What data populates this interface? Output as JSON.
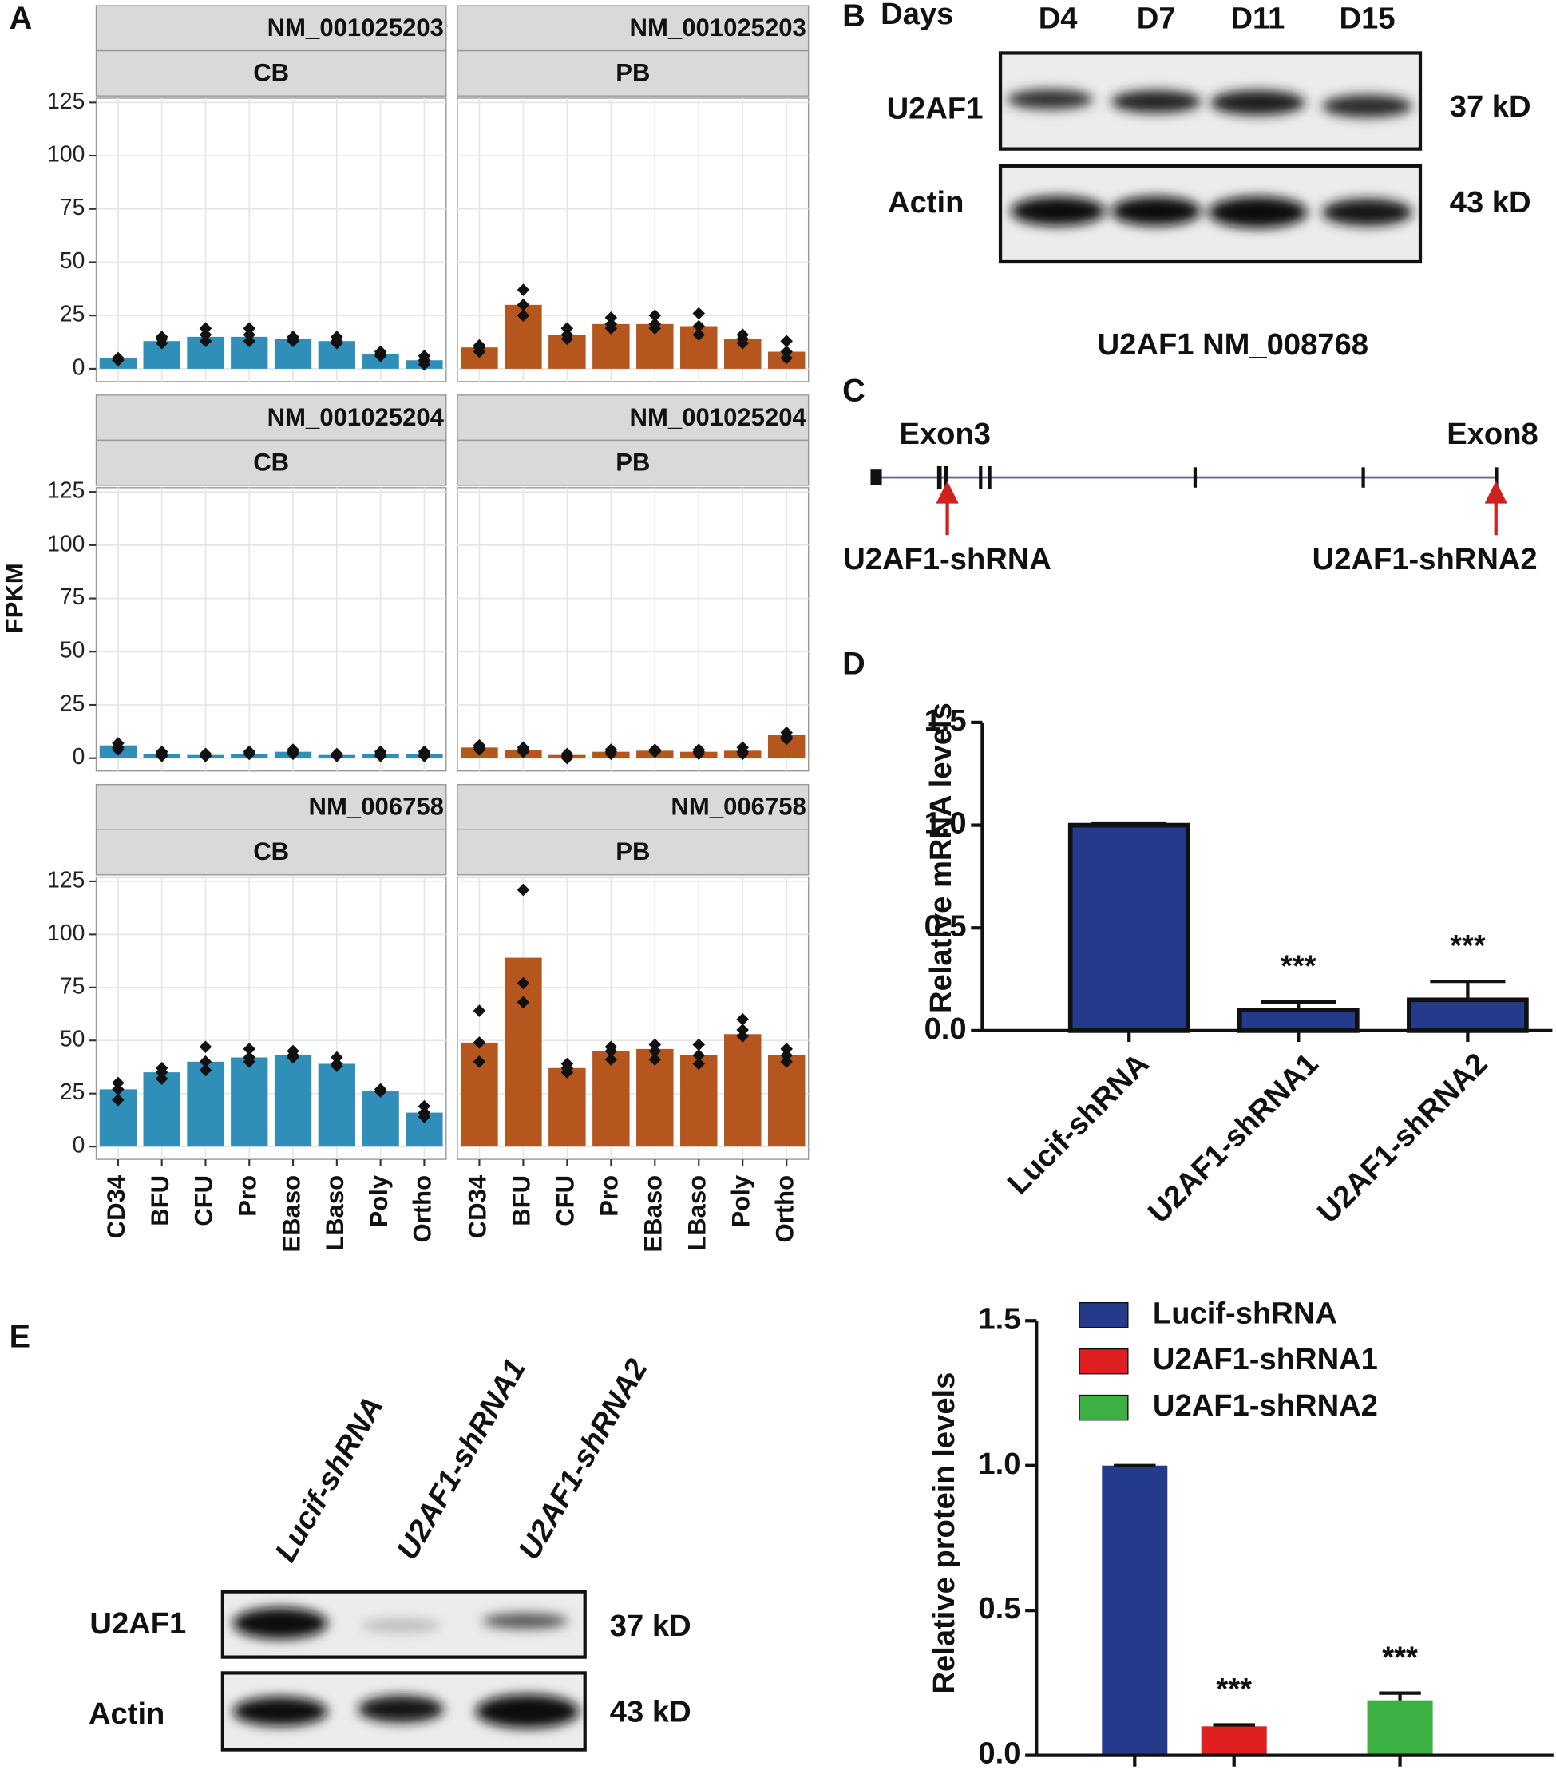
{
  "chart_data": [
    {
      "type": "facet_bar",
      "label": "A",
      "ylabel": "FPKM",
      "categories": [
        "CD34",
        "BFU",
        "CFU",
        "Pro",
        "EBaso",
        "LBaso",
        "Poly",
        "Ortho"
      ],
      "ylim": [
        -6,
        127
      ],
      "yticks": [
        0,
        25,
        50,
        75,
        100,
        125
      ],
      "grid": true,
      "panels": [
        {
          "title": "NM_001025203",
          "strip": "CB",
          "color": "#2f8fb8",
          "values": [
            5,
            13,
            15,
            15,
            14,
            13,
            7,
            4
          ],
          "points": [
            [
              4,
              5,
              5
            ],
            [
              12,
              14,
              15
            ],
            [
              13,
              16,
              19
            ],
            [
              13,
              16,
              19
            ],
            [
              13,
              14,
              15
            ],
            [
              12,
              13,
              15
            ],
            [
              6,
              7,
              8
            ],
            [
              2,
              4,
              6
            ]
          ]
        },
        {
          "title": "NM_001025203",
          "strip": "PB",
          "color": "#b5561f",
          "values": [
            10,
            30,
            16,
            21,
            21,
            20,
            14,
            8
          ],
          "points": [
            [
              8,
              10,
              11
            ],
            [
              25,
              30,
              37
            ],
            [
              14,
              16,
              19
            ],
            [
              19,
              21,
              24
            ],
            [
              19,
              21,
              25
            ],
            [
              16,
              20,
              26
            ],
            [
              12,
              14,
              16
            ],
            [
              5,
              8,
              13
            ]
          ]
        },
        {
          "title": "NM_001025204",
          "strip": "CB",
          "color": "#2f8fb8",
          "values": [
            6,
            2,
            1.5,
            2,
            3,
            1.5,
            2,
            2
          ],
          "points": [
            [
              4,
              5,
              7
            ],
            [
              1,
              2,
              3
            ],
            [
              1,
              2,
              2
            ],
            [
              2,
              2,
              3
            ],
            [
              2,
              3,
              4
            ],
            [
              1,
              1.5,
              2
            ],
            [
              1,
              2,
              3
            ],
            [
              1,
              2,
              3
            ]
          ]
        },
        {
          "title": "NM_001025204",
          "strip": "PB",
          "color": "#b5561f",
          "values": [
            5,
            4,
            1.5,
            3,
            3.5,
            3,
            3.5,
            11
          ],
          "points": [
            [
              4,
              5,
              6
            ],
            [
              3,
              4,
              5
            ],
            [
              0,
              1,
              2
            ],
            [
              2,
              3,
              4
            ],
            [
              3,
              3.5,
              4
            ],
            [
              2,
              3,
              4
            ],
            [
              2,
              3,
              5
            ],
            [
              9,
              10,
              12
            ]
          ]
        },
        {
          "title": "NM_006758",
          "strip": "CB",
          "color": "#2f8fb8",
          "values": [
            27,
            35,
            40,
            42,
            43,
            39,
            26,
            16
          ],
          "points": [
            [
              22,
              27,
              30
            ],
            [
              32,
              35,
              37
            ],
            [
              36,
              40,
              47
            ],
            [
              40,
              42,
              46
            ],
            [
              42,
              43,
              45
            ],
            [
              38,
              39,
              42
            ],
            [
              26,
              26,
              27
            ],
            [
              14,
              16,
              19
            ]
          ]
        },
        {
          "title": "NM_006758",
          "strip": "PB",
          "color": "#b5561f",
          "values": [
            49,
            89,
            37,
            45,
            46,
            43,
            53,
            43
          ],
          "points": [
            [
              40,
              49,
              64
            ],
            [
              68,
              77,
              121
            ],
            [
              35,
              37,
              39
            ],
            [
              41,
              45,
              47
            ],
            [
              41,
              45,
              48
            ],
            [
              39,
              43,
              48
            ],
            [
              52,
              55,
              60
            ],
            [
              40,
              43,
              46
            ]
          ]
        }
      ]
    },
    {
      "type": "bar",
      "label": "D",
      "ylabel": "Relative mRNA levels",
      "categories": [
        "Lucif-shRNA",
        "U2AF1-shRNA1",
        "U2AF1-shRNA2"
      ],
      "values": [
        1.0,
        0.1,
        0.15
      ],
      "errors": [
        0.01,
        0.04,
        0.09
      ],
      "annotations": [
        null,
        "***",
        "***"
      ],
      "color": "#243b8b",
      "ylim": [
        0,
        1.5
      ],
      "yticks": [
        {
          "value": 0,
          "label": "0.0"
        },
        {
          "value": 0.5,
          "label": "0.5"
        },
        {
          "value": 1,
          "label": "1.0"
        },
        {
          "value": 1.5,
          "label": "1.5"
        }
      ]
    },
    {
      "type": "bar",
      "ylabel": "Relative protein levels",
      "categories": [
        "Lucif-shRNA",
        "U2AF1-shRNA1",
        "U2AF1-shRNA2"
      ],
      "values": [
        1.0,
        0.1,
        0.19
      ],
      "errors": [
        0,
        0.005,
        0.025
      ],
      "annotations": [
        null,
        "***",
        "***"
      ],
      "colors": [
        "#243b8b",
        "#e02020",
        "#3cb043"
      ],
      "legend": "top-right",
      "ylim": [
        0,
        1.5
      ],
      "yticks": [
        {
          "value": 0,
          "label": "0.0"
        },
        {
          "value": 0.5,
          "label": "0.5"
        },
        {
          "value": 1,
          "label": "1.0"
        },
        {
          "value": 1.5,
          "label": "1.5"
        }
      ]
    }
  ],
  "panel_b": {
    "label": "B",
    "days": "Days",
    "lanes": [
      "D4",
      "D7",
      "D11",
      "D15"
    ],
    "rows": [
      "U2AF1",
      "Actin"
    ],
    "sizes": [
      "37 kD",
      "43 kD"
    ]
  },
  "panel_c": {
    "label": "C",
    "title": "U2AF1  NM_008768",
    "exons": [
      "Exon3",
      "Exon8"
    ],
    "targets": [
      "U2AF1-shRNA",
      "U2AF1-shRNA2"
    ]
  },
  "panel_e_blot": {
    "label": "E",
    "lanes": [
      "Lucif-shRNA",
      "U2AF1-shRNA1",
      "U2AF1-shRNA2"
    ],
    "rows": [
      "U2AF1",
      "Actin"
    ],
    "sizes": [
      "37 kD",
      "43 kD"
    ]
  }
}
